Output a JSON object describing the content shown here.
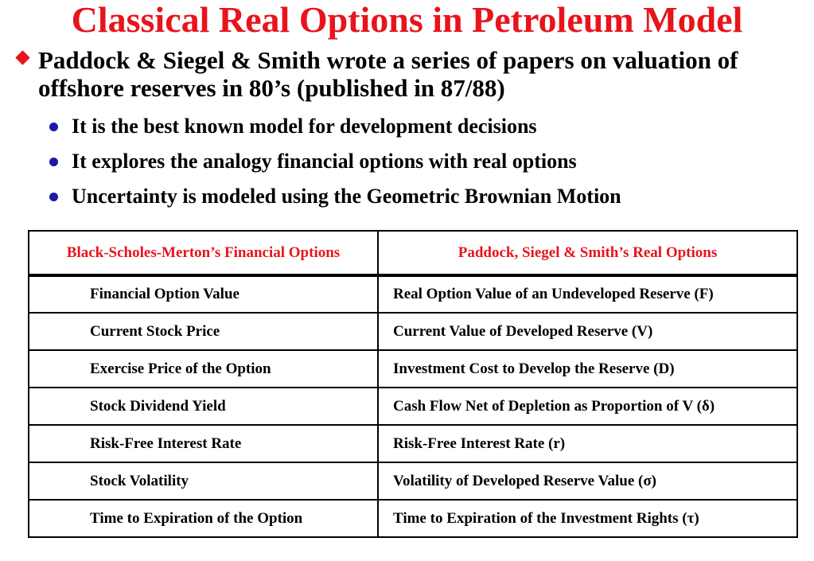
{
  "slide": {
    "title": "Classical Real Options in Petroleum Model",
    "main_bullet": "Paddock & Siegel & Smith wrote a series of papers on valuation of offshore reserves in 80’s (published in 87/88)",
    "sub_bullets": [
      "It is the best known model for development decisions",
      "It explores the analogy financial options with real options",
      "Uncertainty is modeled using the Geometric Brownian Motion"
    ]
  },
  "table": {
    "headers": [
      "Black-Scholes-Merton’s Financial Options",
      "Paddock, Siegel & Smith’s Real Options"
    ],
    "rows": [
      [
        "Financial Option Value",
        "Real Option Value of an Undeveloped Reserve (F)"
      ],
      [
        "Current Stock Price",
        "Current Value of Developed Reserve (V)"
      ],
      [
        "Exercise Price of the Option",
        "Investment Cost to Develop the Reserve (D)"
      ],
      [
        "Stock Dividend Yield",
        "Cash Flow Net of Depletion as Proportion of V (δ)"
      ],
      [
        "Risk-Free Interest Rate",
        "Risk-Free Interest Rate (r)"
      ],
      [
        "Stock Volatility",
        "Volatility of Developed Reserve Value (σ)"
      ],
      [
        "Time to Expiration of the Option",
        "Time to Expiration of the Investment Rights (τ)"
      ]
    ]
  },
  "colors": {
    "title": "#e8141c",
    "bullet_diamond": "#e8141c",
    "bullet_dot": "#1a1aa6"
  },
  "icons": {
    "main_bullet": "diamond-bullet-icon",
    "sub_bullet": "dot-bullet-icon"
  }
}
